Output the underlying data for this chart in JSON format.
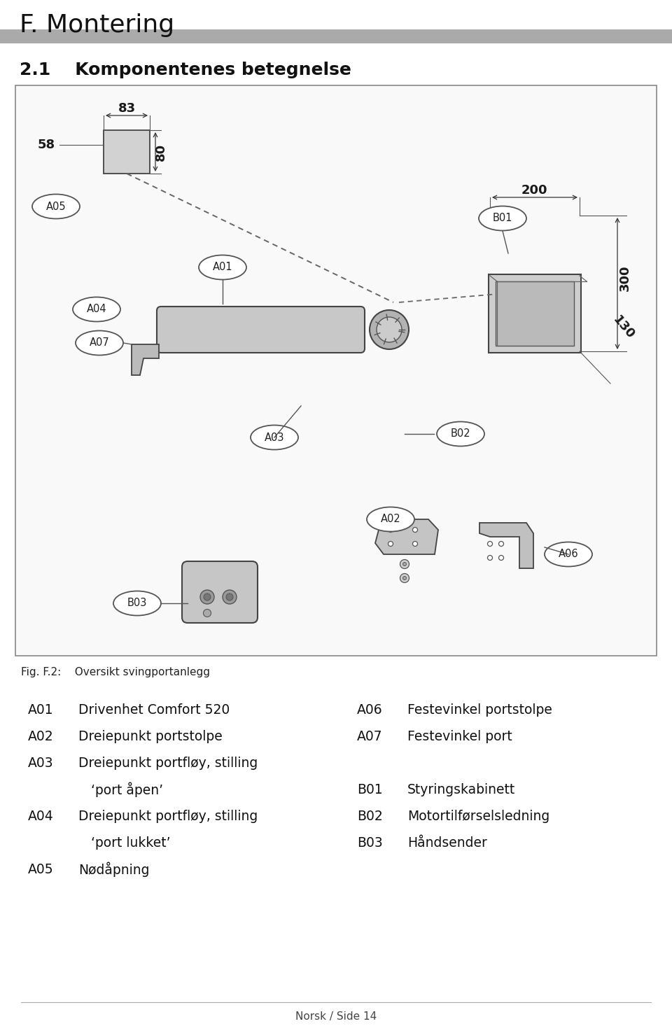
{
  "page_title": "F. Montering",
  "section_title": "2.1    Komponentenes betegnelse",
  "fig_caption": "Fig. F.2:    Oversikt svingportanlegg",
  "footer": "Norsk / Side 14",
  "bg_color": "#ffffff",
  "header_bar_color": "#aaaaaa",
  "left_items": [
    [
      "A01",
      "Drivenhet Comfort 520"
    ],
    [
      "A02",
      "Dreiepunkt portstolpe"
    ],
    [
      "A03",
      "Dreiepunkt portfløy, stilling"
    ],
    [
      "",
      "   ‘port åpen’"
    ],
    [
      "A04",
      "Dreiepunkt portfløy, stilling"
    ],
    [
      "",
      "   ‘port lukket’"
    ],
    [
      "A05",
      "Nødåpning"
    ]
  ],
  "right_items": [
    [
      "A06",
      "Festevinkel portstolpe"
    ],
    [
      "A07",
      "Festevinkel port"
    ],
    [
      "",
      ""
    ],
    [
      "B01",
      "Styringskabinett"
    ],
    [
      "B02",
      "Motortilførselsledning"
    ],
    [
      "B03",
      "Håndsender"
    ]
  ],
  "dims_tl": [
    "83",
    "80",
    "58"
  ],
  "dims_tr": [
    "200",
    "300",
    "130"
  ]
}
